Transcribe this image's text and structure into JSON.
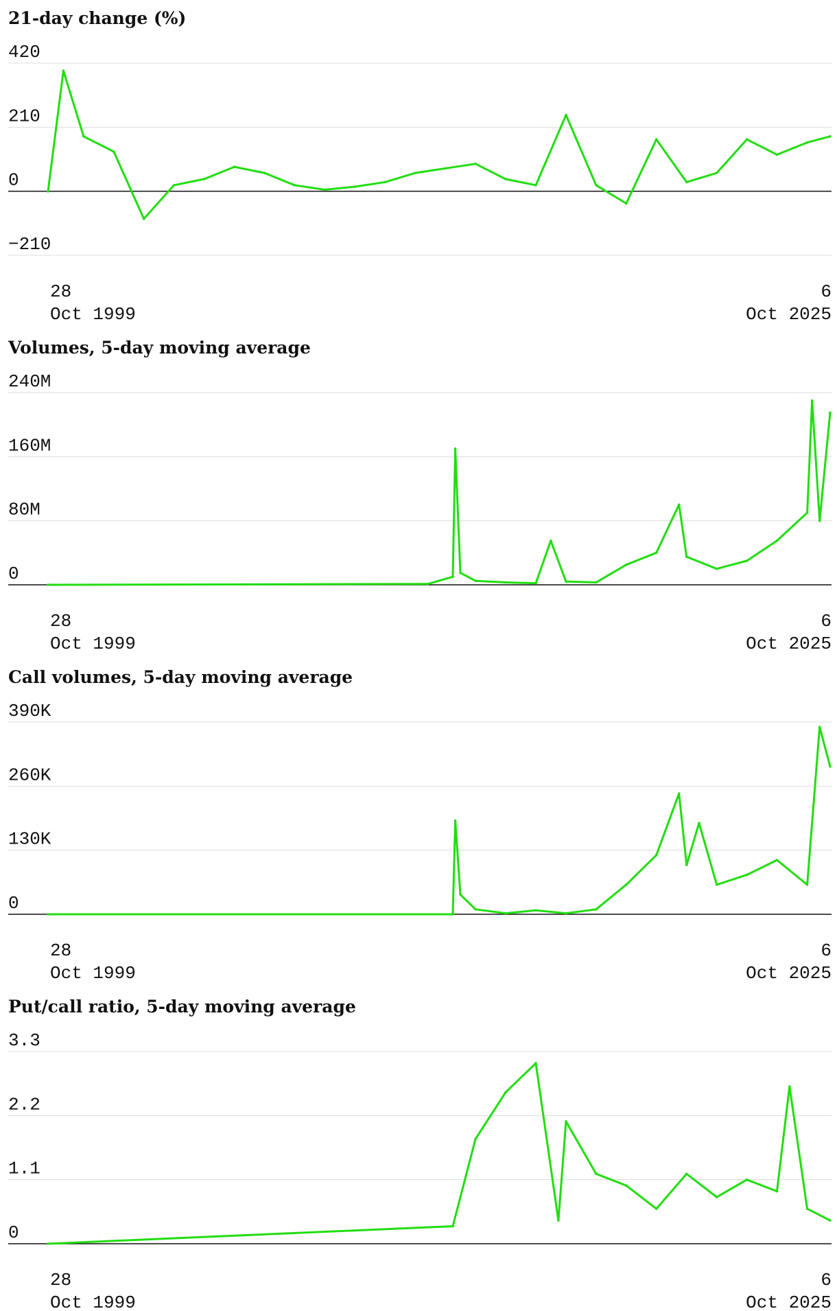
{
  "chart_data": [
    {
      "type": "line",
      "title": "21-day change (%)",
      "ylim": [
        -210,
        420
      ],
      "y_ticks": [
        "420",
        "210",
        "0",
        "−210"
      ],
      "x_start": {
        "day": "28",
        "month_year": "Oct 1999"
      },
      "x_end": {
        "day": "6",
        "month_year": "Oct 2025"
      },
      "x": [
        "1999-10-28",
        "2000-05",
        "2001",
        "2002",
        "2003",
        "2004",
        "2005",
        "2006",
        "2007",
        "2008",
        "2009",
        "2010",
        "2011",
        "2012",
        "2013",
        "2014",
        "2015",
        "2016",
        "2017",
        "2018",
        "2019",
        "2020",
        "2021",
        "2022",
        "2023",
        "2024",
        "2025",
        "2025-10-06"
      ],
      "values": [
        0,
        395,
        180,
        130,
        -90,
        20,
        40,
        80,
        60,
        20,
        5,
        15,
        30,
        60,
        75,
        90,
        40,
        20,
        250,
        20,
        -40,
        170,
        30,
        60,
        170,
        120,
        160,
        180
      ],
      "grid": true,
      "zero_line": true
    },
    {
      "type": "line",
      "title": "Volumes, 5-day moving average",
      "ylim": [
        0,
        240
      ],
      "y_ticks": [
        "240M",
        "160M",
        "80M",
        "0"
      ],
      "x_start": {
        "day": "28",
        "month_year": "Oct 1999"
      },
      "x_end": {
        "day": "6",
        "month_year": "Oct 2025"
      },
      "x": [
        "1999-10-28",
        "2012-06",
        "2013-04",
        "2013-05",
        "2013-07",
        "2014",
        "2015",
        "2016",
        "2016-07",
        "2017",
        "2018",
        "2019",
        "2020",
        "2020-10",
        "2021",
        "2022",
        "2023",
        "2024",
        "2025",
        "2025-03",
        "2025-06",
        "2025-10-06"
      ],
      "values": [
        0,
        1,
        10,
        170,
        15,
        5,
        3,
        2,
        55,
        4,
        3,
        25,
        40,
        100,
        35,
        20,
        30,
        55,
        90,
        230,
        80,
        215
      ],
      "grid": true,
      "zero_line": true
    },
    {
      "type": "line",
      "title": "Call volumes, 5-day moving average",
      "ylim": [
        0,
        390
      ],
      "y_ticks": [
        "390K",
        "260K",
        "130K",
        "0"
      ],
      "x_start": {
        "day": "28",
        "month_year": "Oct 1999"
      },
      "x_end": {
        "day": "6",
        "month_year": "Oct 2025"
      },
      "x": [
        "1999-10-28",
        "2013-04",
        "2013-05",
        "2013-07",
        "2014",
        "2015",
        "2016",
        "2017",
        "2018",
        "2019",
        "2020",
        "2020-10",
        "2021",
        "2021-06",
        "2022",
        "2023",
        "2024",
        "2025",
        "2025-06",
        "2025-10-06"
      ],
      "values": [
        0,
        0,
        190,
        40,
        10,
        2,
        8,
        2,
        10,
        60,
        120,
        245,
        100,
        185,
        60,
        80,
        110,
        60,
        380,
        300
      ],
      "grid": true,
      "zero_line": true
    },
    {
      "type": "line",
      "title": "Put/call ratio, 5-day moving average",
      "ylim": [
        0,
        3.3
      ],
      "y_ticks": [
        "3.3",
        "2.2",
        "1.1",
        "0"
      ],
      "x_start": {
        "day": "28",
        "month_year": "Oct 1999"
      },
      "x_end": {
        "day": "6",
        "month_year": "Oct 2025"
      },
      "x": [
        "1999-10-28",
        "2013-04",
        "2014",
        "2015",
        "2016",
        "2016-10",
        "2017",
        "2018",
        "2019",
        "2020",
        "2021",
        "2022",
        "2023",
        "2024",
        "2024-06",
        "2025",
        "2025-10-06"
      ],
      "values": [
        0,
        0.3,
        1.8,
        2.6,
        3.1,
        0.4,
        2.1,
        1.2,
        1.0,
        0.6,
        1.2,
        0.8,
        1.1,
        0.9,
        2.7,
        0.6,
        0.4
      ],
      "grid": true,
      "zero_line": true
    }
  ]
}
